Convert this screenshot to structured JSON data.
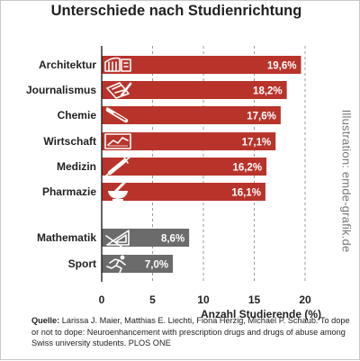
{
  "title": "Unterschiede nach Studienrichtung",
  "credit": "Illustration: emde-grafik.de",
  "source": {
    "label": "Quelle:",
    "text": "Larissa J. Maier, Matthias E. Liechti, Fiona Herzig, Michael P. Schaub. To dope or not to dope: Neuroenhancement with prescription drugs and drugs of abuse among Swiss university students. PLOS ONE"
  },
  "colors": {
    "primary": "#b8342b",
    "secondary": "#6b6b6b",
    "grid": "#9a9a9a"
  },
  "chart_data": {
    "type": "bar",
    "orientation": "horizontal",
    "title": "Unterschiede nach Studienrichtung",
    "xlabel": "Anzahl Studierende (%)",
    "ylabel": "",
    "xlim": [
      0,
      20
    ],
    "xticks": [
      0,
      5,
      10,
      15,
      20
    ],
    "grid": "vertical dashed",
    "categories": [
      "Architektur",
      "Journalismus",
      "Chemie",
      "Wirtschaft",
      "Medizin",
      "Pharmazie",
      "Mathematik",
      "Sport"
    ],
    "values": [
      19.6,
      18.2,
      17.6,
      17.1,
      16.2,
      16.1,
      8.6,
      7.0
    ],
    "value_labels": [
      "19,6%",
      "18,2%",
      "17,6%",
      "17,1%",
      "16,2%",
      "16,1%",
      "8,6%",
      "7,0%"
    ],
    "groups": [
      "primary",
      "primary",
      "primary",
      "primary",
      "primary",
      "primary",
      "secondary",
      "secondary"
    ],
    "icons": [
      "building-icon",
      "newspaper-pen-icon",
      "test-tube-icon",
      "growth-chart-icon",
      "syringe-icon",
      "mortar-pestle-icon",
      "set-square-icon",
      "runner-icon"
    ]
  }
}
